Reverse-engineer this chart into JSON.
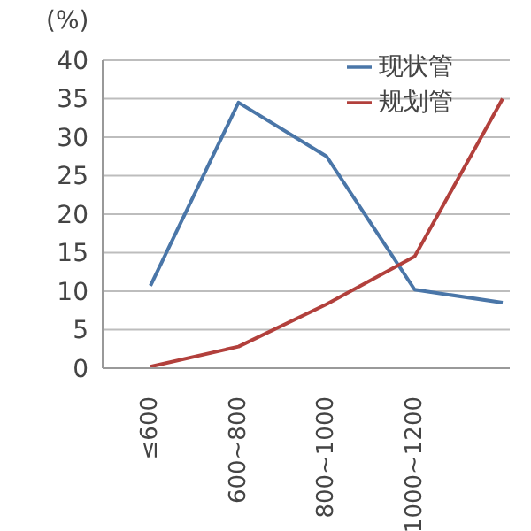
{
  "chart_data": {
    "type": "line",
    "ylabel": "(%)",
    "categories": [
      "≤600",
      "600~800",
      "800~1000",
      "1000~1200",
      null
    ],
    "series": [
      {
        "name": "现状管",
        "color": "#4a76a8",
        "values": [
          10.7,
          34.5,
          27.5,
          10.2,
          8.5
        ]
      },
      {
        "name": "规划管",
        "color": "#b2403c",
        "values": [
          0.2,
          2.8,
          8.3,
          14.5,
          35
        ]
      }
    ],
    "ylim": [
      0,
      40
    ],
    "yticks": [
      0,
      5,
      10,
      15,
      20,
      25,
      30,
      35,
      40
    ],
    "grid": "y",
    "legend": "top right",
    "marker": "none",
    "line_style": "solid"
  }
}
